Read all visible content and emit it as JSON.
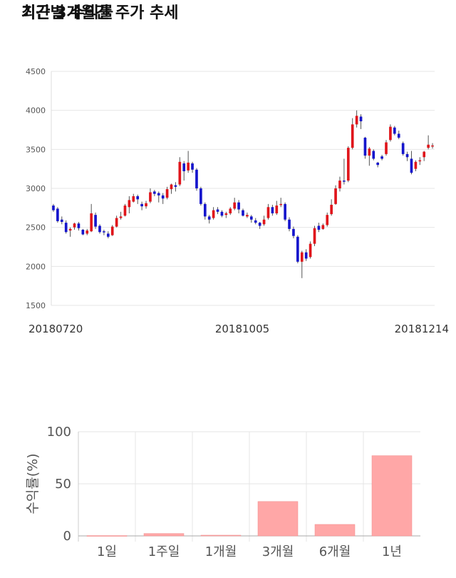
{
  "sections": {
    "price_title": "최근 3개월간 주가 추세",
    "return_title": "기간별 수익률"
  },
  "chart_data": [
    {
      "type": "candlestick",
      "title": "최근 3개월간 주가 추세",
      "ylim": [
        1500,
        4500
      ],
      "yticks": [
        1500,
        2000,
        2500,
        3000,
        3500,
        4000,
        4500
      ],
      "xtick_labels": [
        "20180720",
        "20181005",
        "20181214"
      ],
      "grid": true,
      "colors": {
        "up": "#e0151b",
        "down": "#1515cc",
        "wick": "#555555",
        "grid": "#e6e6e6"
      },
      "candles": [
        [
          2780,
          2800,
          2700,
          2720
        ],
        [
          2740,
          2760,
          2560,
          2580
        ],
        [
          2600,
          2640,
          2540,
          2570
        ],
        [
          2560,
          2590,
          2420,
          2440
        ],
        [
          2460,
          2500,
          2380,
          2480
        ],
        [
          2500,
          2560,
          2470,
          2550
        ],
        [
          2550,
          2570,
          2460,
          2490
        ],
        [
          2470,
          2480,
          2400,
          2410
        ],
        [
          2420,
          2480,
          2400,
          2460
        ],
        [
          2450,
          2800,
          2440,
          2680
        ],
        [
          2660,
          2690,
          2480,
          2510
        ],
        [
          2520,
          2540,
          2420,
          2440
        ],
        [
          2450,
          2470,
          2400,
          2440
        ],
        [
          2420,
          2450,
          2360,
          2380
        ],
        [
          2400,
          2530,
          2390,
          2510
        ],
        [
          2510,
          2650,
          2500,
          2620
        ],
        [
          2620,
          2700,
          2600,
          2640
        ],
        [
          2650,
          2800,
          2640,
          2780
        ],
        [
          2760,
          2900,
          2680,
          2850
        ],
        [
          2830,
          2930,
          2820,
          2900
        ],
        [
          2900,
          2920,
          2800,
          2860
        ],
        [
          2800,
          2830,
          2720,
          2770
        ],
        [
          2770,
          2840,
          2740,
          2810
        ],
        [
          2830,
          3000,
          2810,
          2950
        ],
        [
          2960,
          2980,
          2900,
          2930
        ],
        [
          2940,
          2960,
          2820,
          2910
        ],
        [
          2910,
          2940,
          2800,
          2870
        ],
        [
          2880,
          3020,
          2860,
          2990
        ],
        [
          2990,
          3060,
          2930,
          3050
        ],
        [
          3040,
          3080,
          2960,
          3020
        ],
        [
          3050,
          3400,
          3030,
          3340
        ],
        [
          3320,
          3350,
          3100,
          3220
        ],
        [
          3230,
          3480,
          3200,
          3330
        ],
        [
          3320,
          3340,
          3200,
          3240
        ],
        [
          3240,
          3260,
          2970,
          3000
        ],
        [
          3000,
          3020,
          2780,
          2800
        ],
        [
          2800,
          2820,
          2600,
          2640
        ],
        [
          2640,
          2660,
          2550,
          2600
        ],
        [
          2620,
          2760,
          2600,
          2720
        ],
        [
          2730,
          2760,
          2670,
          2700
        ],
        [
          2700,
          2720,
          2630,
          2650
        ],
        [
          2660,
          2700,
          2620,
          2680
        ],
        [
          2680,
          2760,
          2660,
          2740
        ],
        [
          2740,
          2880,
          2720,
          2820
        ],
        [
          2820,
          2850,
          2680,
          2730
        ],
        [
          2720,
          2740,
          2640,
          2650
        ],
        [
          2640,
          2690,
          2620,
          2660
        ],
        [
          2640,
          2660,
          2560,
          2600
        ],
        [
          2590,
          2620,
          2540,
          2560
        ],
        [
          2560,
          2570,
          2480,
          2520
        ],
        [
          2540,
          2650,
          2520,
          2600
        ],
        [
          2620,
          2800,
          2600,
          2760
        ],
        [
          2760,
          2790,
          2650,
          2680
        ],
        [
          2680,
          2840,
          2660,
          2780
        ],
        [
          2790,
          2880,
          2760,
          2800
        ],
        [
          2800,
          2820,
          2580,
          2600
        ],
        [
          2600,
          2630,
          2450,
          2480
        ],
        [
          2480,
          2510,
          2360,
          2390
        ],
        [
          2380,
          2400,
          2040,
          2060
        ],
        [
          2060,
          2200,
          1850,
          2180
        ],
        [
          2180,
          2220,
          2070,
          2100
        ],
        [
          2120,
          2320,
          2100,
          2290
        ],
        [
          2290,
          2520,
          2260,
          2490
        ],
        [
          2520,
          2560,
          2440,
          2470
        ],
        [
          2480,
          2550,
          2470,
          2530
        ],
        [
          2530,
          2690,
          2510,
          2660
        ],
        [
          2670,
          2860,
          2650,
          2790
        ],
        [
          2800,
          3040,
          2790,
          3000
        ],
        [
          3000,
          3150,
          2960,
          3100
        ],
        [
          3100,
          3380,
          3050,
          3090
        ],
        [
          3100,
          3540,
          3080,
          3520
        ],
        [
          3520,
          3900,
          3500,
          3820
        ],
        [
          3820,
          4000,
          3780,
          3930
        ],
        [
          3920,
          3950,
          3760,
          3860
        ],
        [
          3650,
          3660,
          3380,
          3420
        ],
        [
          3420,
          3530,
          3290,
          3510
        ],
        [
          3480,
          3500,
          3360,
          3380
        ],
        [
          3330,
          3340,
          3270,
          3300
        ],
        [
          3410,
          3430,
          3360,
          3380
        ],
        [
          3440,
          3620,
          3420,
          3590
        ],
        [
          3620,
          3820,
          3600,
          3790
        ],
        [
          3780,
          3800,
          3680,
          3700
        ],
        [
          3700,
          3740,
          3630,
          3650
        ],
        [
          3580,
          3600,
          3420,
          3440
        ],
        [
          3440,
          3470,
          3350,
          3400
        ],
        [
          3380,
          3480,
          3180,
          3200
        ],
        [
          3250,
          3360,
          3220,
          3340
        ],
        [
          3350,
          3400,
          3300,
          3360
        ],
        [
          3400,
          3480,
          3350,
          3470
        ],
        [
          3520,
          3680,
          3500,
          3560
        ],
        [
          3540,
          3580,
          3510,
          3550
        ]
      ]
    },
    {
      "type": "bar",
      "title": "기간별 수익률",
      "ylabel": "수익률(%)",
      "categories": [
        "1일",
        "1주일",
        "1개월",
        "3개월",
        "6개월",
        "1년"
      ],
      "values": [
        0.3,
        2.3,
        0.7,
        33,
        11,
        77
      ],
      "ylim": [
        0,
        100
      ],
      "yticks": [
        0,
        50,
        100
      ],
      "grid": true,
      "colors": {
        "bar": "#ffa7a7",
        "bar_stroke": "#f08a8a",
        "grid": "#e6e6e6"
      }
    }
  ]
}
